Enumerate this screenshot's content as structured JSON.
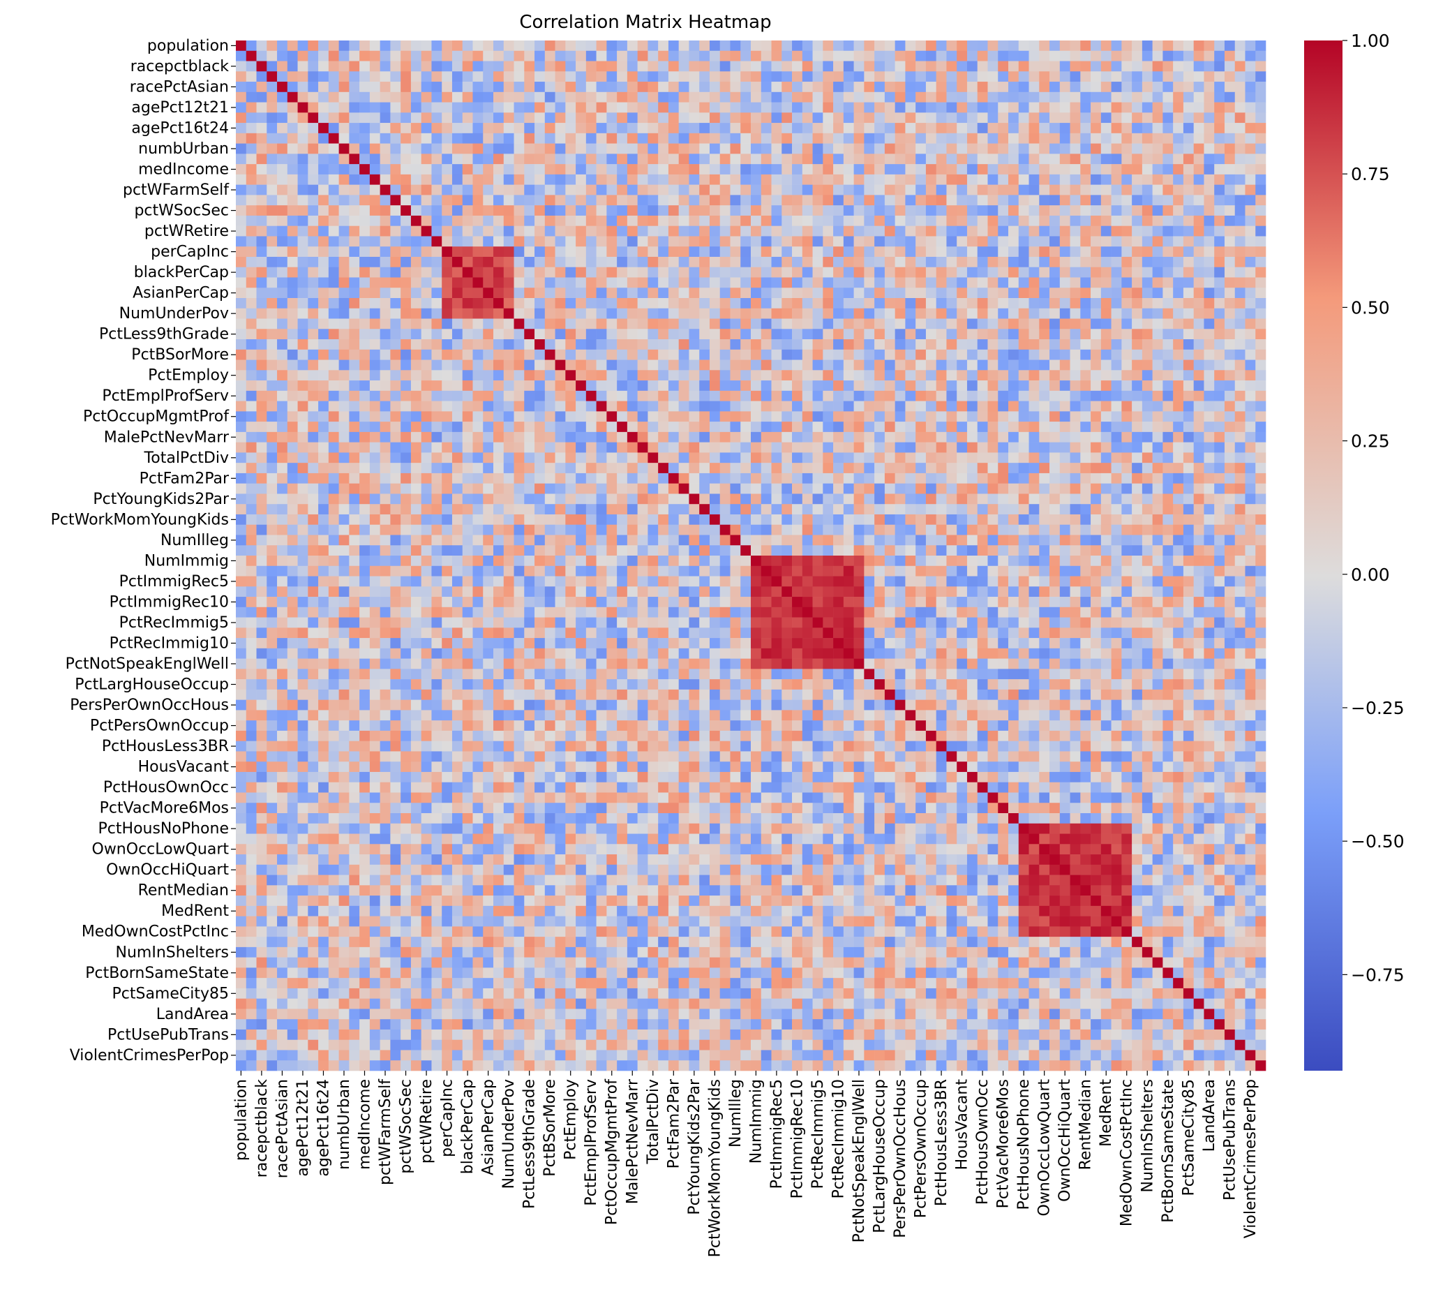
{
  "chart_data": {
    "type": "heatmap",
    "title": "Correlation Matrix Heatmap",
    "colormap": "coolwarm",
    "annotated_cells": true,
    "labels": [
      "population",
      "racepctblack",
      "racePctAsian",
      "agePct12t21",
      "agePct16t24",
      "numbUrban",
      "medIncome",
      "pctWFarmSelf",
      "pctWSocSec",
      "pctWRetire",
      "perCapInc",
      "blackPerCap",
      "AsianPerCap",
      "NumUnderPov",
      "PctLess9thGrade",
      "PctBSorMore",
      "PctEmploy",
      "PctEmplProfServ",
      "PctOccupMgmtProf",
      "MalePctNevMarr",
      "TotalPctDiv",
      "PctFam2Par",
      "PctYoungKids2Par",
      "PctWorkMomYoungKids",
      "NumIlleg",
      "NumImmig",
      "PctImmigRec5",
      "PctImmigRec10",
      "PctRecImmig5",
      "PctRecImmig10",
      "PctNotSpeakEnglWell",
      "PctLargHouseOccup",
      "PersPerOwnOccHous",
      "PctPersOwnOccup",
      "PctHousLess3BR",
      "HousVacant",
      "PctHousOwnOcc",
      "PctVacMore6Mos",
      "PctHousNoPhone",
      "OwnOccLowQuart",
      "OwnOccHiQuart",
      "RentMedian",
      "MedRent",
      "MedOwnCostPctInc",
      "NumInShelters",
      "PctBornSameState",
      "PctSameCity85",
      "LandArea",
      "PctUsePubTrans",
      "ViolentCrimesPerPop"
    ],
    "matrix_size": 100,
    "label_every": 2,
    "vmin": -0.93,
    "vmax": 1.0,
    "colorbar_ticks": [
      "1.00",
      "0.75",
      "0.50",
      "0.25",
      "0.00",
      "−0.25",
      "−0.50",
      "−0.75"
    ],
    "colorbar_values": [
      1.0,
      0.75,
      0.5,
      0.25,
      0.0,
      -0.25,
      -0.5,
      -0.75
    ]
  }
}
